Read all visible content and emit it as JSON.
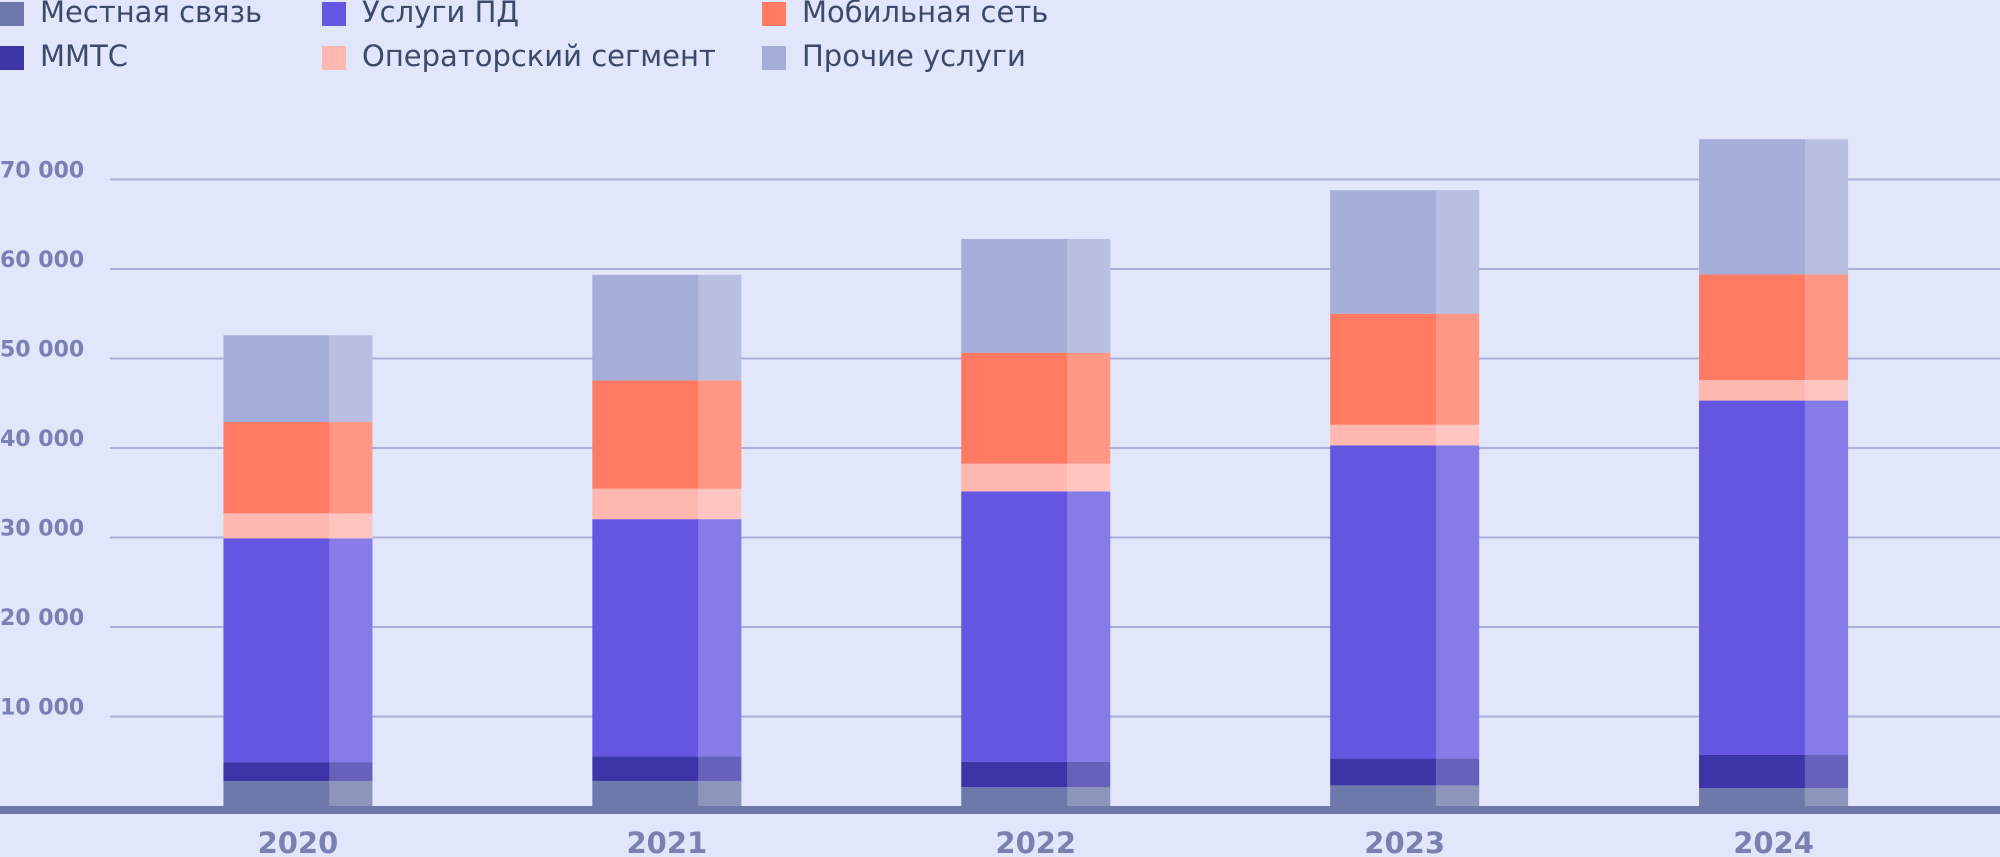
{
  "chart_data": {
    "type": "stacked_bar",
    "categories": [
      "2020",
      "2021",
      "2022",
      "2023",
      "2024"
    ],
    "series": [
      {
        "name": "Местная связь",
        "color": "#6f78aa",
        "values": [
          2800,
          2800,
          2100,
          2300,
          2000
        ]
      },
      {
        "name": "ММТС",
        "color": "#3c35a8",
        "values": [
          2100,
          2750,
          2850,
          3000,
          3700
        ]
      },
      {
        "name": "Услуги ПД",
        "color": "#6456e0",
        "values": [
          25000,
          26500,
          30200,
          35000,
          39600
        ]
      },
      {
        "name": "Операторский сегмент",
        "color": "#ffb7b0",
        "values": [
          2800,
          3400,
          3100,
          2300,
          2300
        ]
      },
      {
        "name": "Мобильная сеть",
        "color": "#ff7a63",
        "values": [
          10200,
          12100,
          12400,
          12400,
          11800
        ]
      },
      {
        "name": "Прочие услуги",
        "color": "#a5aed8",
        "values": [
          9700,
          11800,
          12700,
          13800,
          15100
        ]
      }
    ],
    "ylim": [
      0,
      80000
    ],
    "yticks": [
      {
        "value": 10000,
        "label": "10 000"
      },
      {
        "value": 20000,
        "label": "20 000"
      },
      {
        "value": 30000,
        "label": "30 000"
      },
      {
        "value": 40000,
        "label": "40 000"
      },
      {
        "value": 50000,
        "label": "50 000"
      },
      {
        "value": 60000,
        "label": "60 000"
      },
      {
        "value": 70000,
        "label": "70 000"
      }
    ],
    "grid": true
  }
}
